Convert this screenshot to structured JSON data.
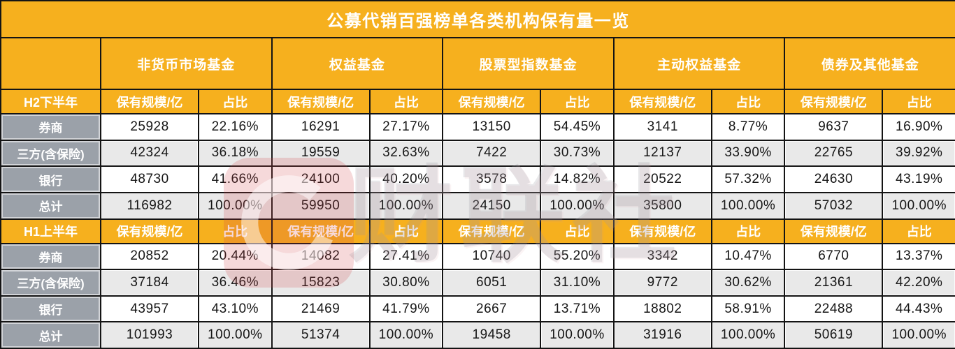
{
  "chart_data": {
    "type": "table",
    "title": "公募代销百强榜单各类机构保有量一览",
    "categories": [
      "非货币市场基金",
      "权益基金",
      "股票型指数基金",
      "主动权益基金",
      "债券及其他基金"
    ],
    "subheaders": {
      "scale": "保有规模/亿",
      "share": "占比"
    },
    "sections": [
      {
        "period": "H2下半年",
        "rows": [
          {
            "label": "券商",
            "cells": [
              "25928",
              "22.16%",
              "16291",
              "27.17%",
              "13150",
              "54.45%",
              "3141",
              "8.77%",
              "9637",
              "16.90%"
            ]
          },
          {
            "label": "三方(含保险)",
            "cells": [
              "42324",
              "36.18%",
              "19559",
              "32.63%",
              "7422",
              "30.73%",
              "12137",
              "33.90%",
              "22765",
              "39.92%"
            ]
          },
          {
            "label": "银行",
            "cells": [
              "48730",
              "41.66%",
              "24100",
              "40.20%",
              "3578",
              "14.82%",
              "20522",
              "57.32%",
              "24630",
              "43.19%"
            ]
          },
          {
            "label": "总计",
            "cells": [
              "116982",
              "100.00%",
              "59950",
              "100.00%",
              "24150",
              "100.00%",
              "35800",
              "100.00%",
              "57032",
              "100.00%"
            ]
          }
        ]
      },
      {
        "period": "H1上半年",
        "rows": [
          {
            "label": "券商",
            "cells": [
              "20852",
              "20.44%",
              "14082",
              "27.41%",
              "10740",
              "55.20%",
              "3342",
              "10.47%",
              "6770",
              "13.37%"
            ]
          },
          {
            "label": "三方(含保险)",
            "cells": [
              "37184",
              "36.46%",
              "15823",
              "30.80%",
              "6051",
              "31.10%",
              "9772",
              "30.62%",
              "21361",
              "42.20%"
            ]
          },
          {
            "label": "银行",
            "cells": [
              "43957",
              "43.10%",
              "21469",
              "41.79%",
              "2667",
              "13.71%",
              "18802",
              "58.91%",
              "22488",
              "44.43%"
            ]
          },
          {
            "label": "总计",
            "cells": [
              "101993",
              "100.00%",
              "51374",
              "100.00%",
              "19458",
              "100.00%",
              "31916",
              "100.00%",
              "50619",
              "100.00%"
            ]
          }
        ]
      }
    ],
    "layout": {
      "column_groups": 5,
      "columns_per_group": 2,
      "grid": "on"
    }
  },
  "watermark": {
    "text": "财联社"
  },
  "colors": {
    "accent_orange": "#F6B01E",
    "label_gray": "#9BA1A9",
    "stripe_gray": "#E9E9E9",
    "border_black": "#141414",
    "watermark_red": "#D03F46",
    "text_white": "#FFFFFF",
    "text_black": "#161616"
  }
}
